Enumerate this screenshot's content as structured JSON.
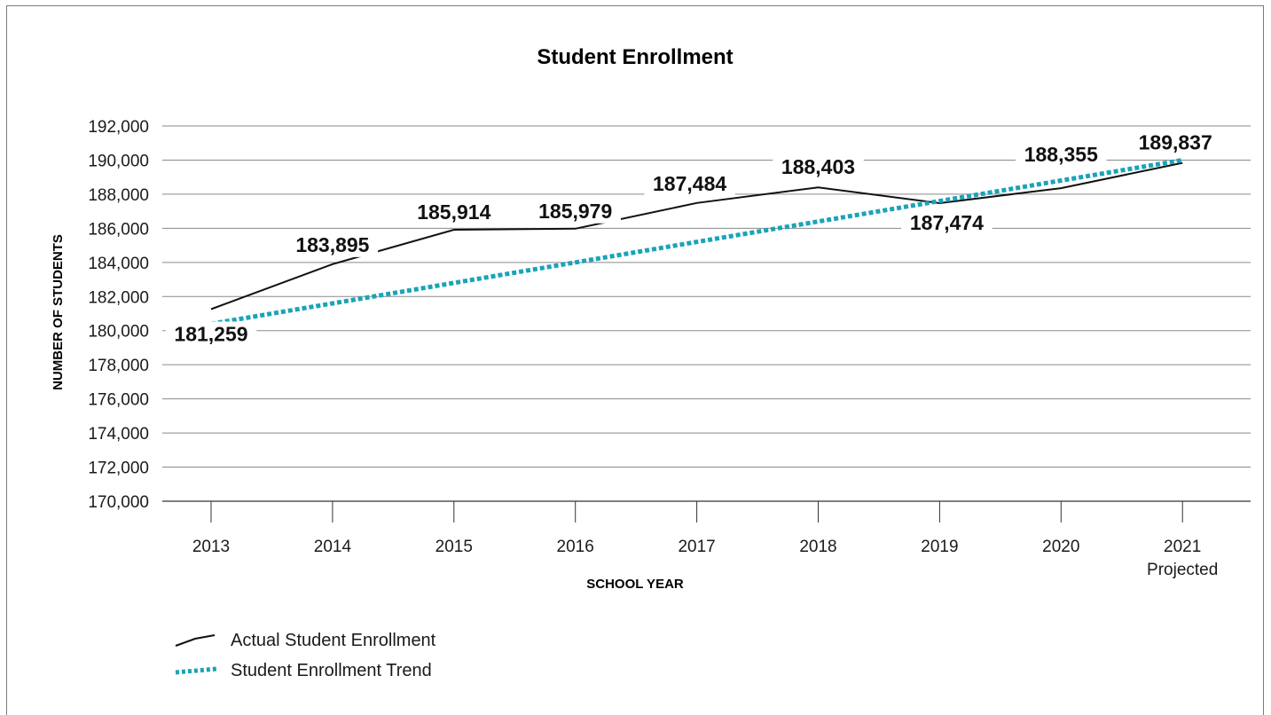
{
  "chart_data": {
    "type": "line",
    "title": "Student Enrollment",
    "xlabel": "SCHOOL YEAR",
    "ylabel": "NUMBER OF STUDENTS",
    "categories": [
      "2013",
      "2014",
      "2015",
      "2016",
      "2017",
      "2018",
      "2019",
      "2020",
      "2021"
    ],
    "category_sublabels": [
      "",
      "",
      "",
      "",
      "",
      "",
      "",
      "",
      "Projected"
    ],
    "y_ticks": [
      "170,000",
      "172,000",
      "174,000",
      "176,000",
      "178,000",
      "180,000",
      "182,000",
      "184,000",
      "186,000",
      "188,000",
      "190,000",
      "192,000"
    ],
    "ylim": [
      170000,
      192000
    ],
    "grid": true,
    "legend_placement": "bottom-left",
    "series": [
      {
        "name": "Actual Student Enrollment",
        "style": "solid",
        "color": "#111111",
        "values": [
          181259,
          183895,
          185914,
          185979,
          187484,
          188403,
          187474,
          188355,
          189837
        ],
        "labels": [
          "181,259",
          "183,895",
          "185,914",
          "185,979",
          "187,484",
          "188,403",
          "187,474",
          "188,355",
          "189,837"
        ]
      },
      {
        "name": "Student Enrollment Trend",
        "style": "dotted",
        "color": "#1aa3b8",
        "values": [
          180400,
          181600,
          182800,
          184000,
          185200,
          186400,
          187600,
          188800,
          190000
        ]
      }
    ]
  }
}
